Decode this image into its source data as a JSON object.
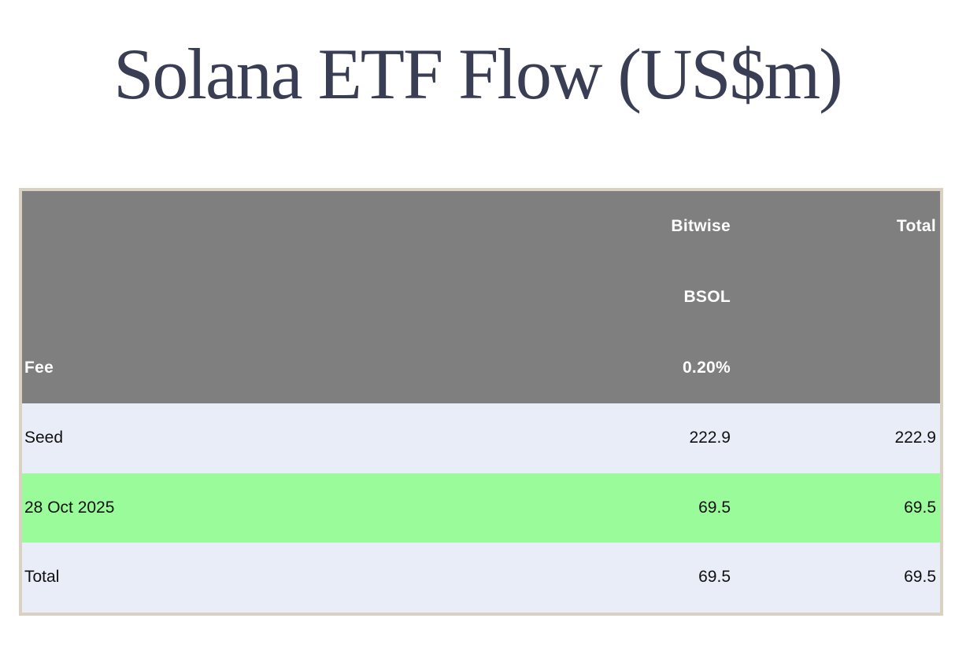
{
  "title": "Solana ETF Flow (US$m)",
  "colors": {
    "title_color": "#3a3e54",
    "header_bg": "#7f7f7f",
    "header_text": "#ffffff",
    "row_bg": "#e9edf8",
    "highlight_bg": "#99fb99",
    "border_color": "#d9d1c2",
    "body_text": "#101010"
  },
  "table": {
    "header_rows": [
      {
        "label": "",
        "bitwise": "Bitwise",
        "total": "Total"
      },
      {
        "label": "",
        "bitwise": "BSOL",
        "total": ""
      },
      {
        "label": "Fee",
        "bitwise": "0.20%",
        "total": ""
      }
    ],
    "rows": [
      {
        "label": "Seed",
        "bitwise": "222.9",
        "total": "222.9"
      },
      {
        "label": "28 Oct 2025",
        "bitwise": "69.5",
        "total": "69.5"
      },
      {
        "label": "Total",
        "bitwise": "69.5",
        "total": "69.5"
      }
    ]
  },
  "chart_data": {
    "type": "table",
    "title": "Solana ETF Flow (US$m)",
    "column_headers": [
      [
        "",
        "Bitwise",
        "Total"
      ],
      [
        "",
        "BSOL",
        ""
      ],
      [
        "Fee",
        "0.20%",
        ""
      ]
    ],
    "fund": {
      "issuer": "Bitwise",
      "ticker": "BSOL",
      "fee_pct": 0.2
    },
    "rows": [
      {
        "label": "Seed",
        "bitwise": 222.9,
        "total": 222.9,
        "highlighted": false
      },
      {
        "label": "28 Oct 2025",
        "bitwise": 69.5,
        "total": 69.5,
        "highlighted": true
      },
      {
        "label": "Total",
        "bitwise": 69.5,
        "total": 69.5,
        "highlighted": false
      }
    ],
    "units": "US$m",
    "layout": {
      "highlight_color": "#99fb99",
      "header_color": "#7f7f7f"
    }
  }
}
